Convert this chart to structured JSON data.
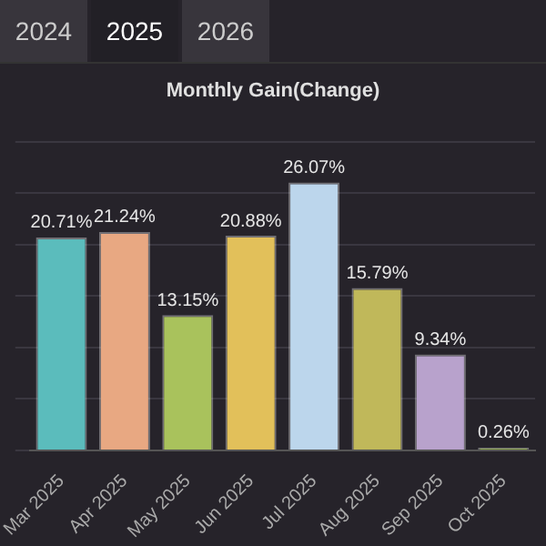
{
  "chart_data": {
    "type": "bar",
    "title": "Monthly Gain(Change)",
    "annotations": [
      "2024",
      "2025",
      "2026"
    ],
    "categories": [
      "Mar 2025",
      "Apr 2025",
      "May 2025",
      "Jun 2025",
      "Jul 2025",
      "Aug 2025",
      "Sep 2025",
      "Oct 2025"
    ],
    "values": [
      20.71,
      21.24,
      13.15,
      20.88,
      26.07,
      15.79,
      9.34,
      0.26
    ],
    "colors": [
      "#5bbcbc",
      "#e8a882",
      "#a9c25c",
      "#e2c05a",
      "#bcd6ec",
      "#c0b85a",
      "#b8a2cc",
      "#8fa850"
    ],
    "value_labels": [
      "20.71%",
      "21.24%",
      "13.15%",
      "20.88%",
      "26.07%",
      "15.79%",
      "9.34%",
      "0.26%"
    ],
    "grid": "y",
    "tick_labels": "x",
    "legend": false
  }
}
